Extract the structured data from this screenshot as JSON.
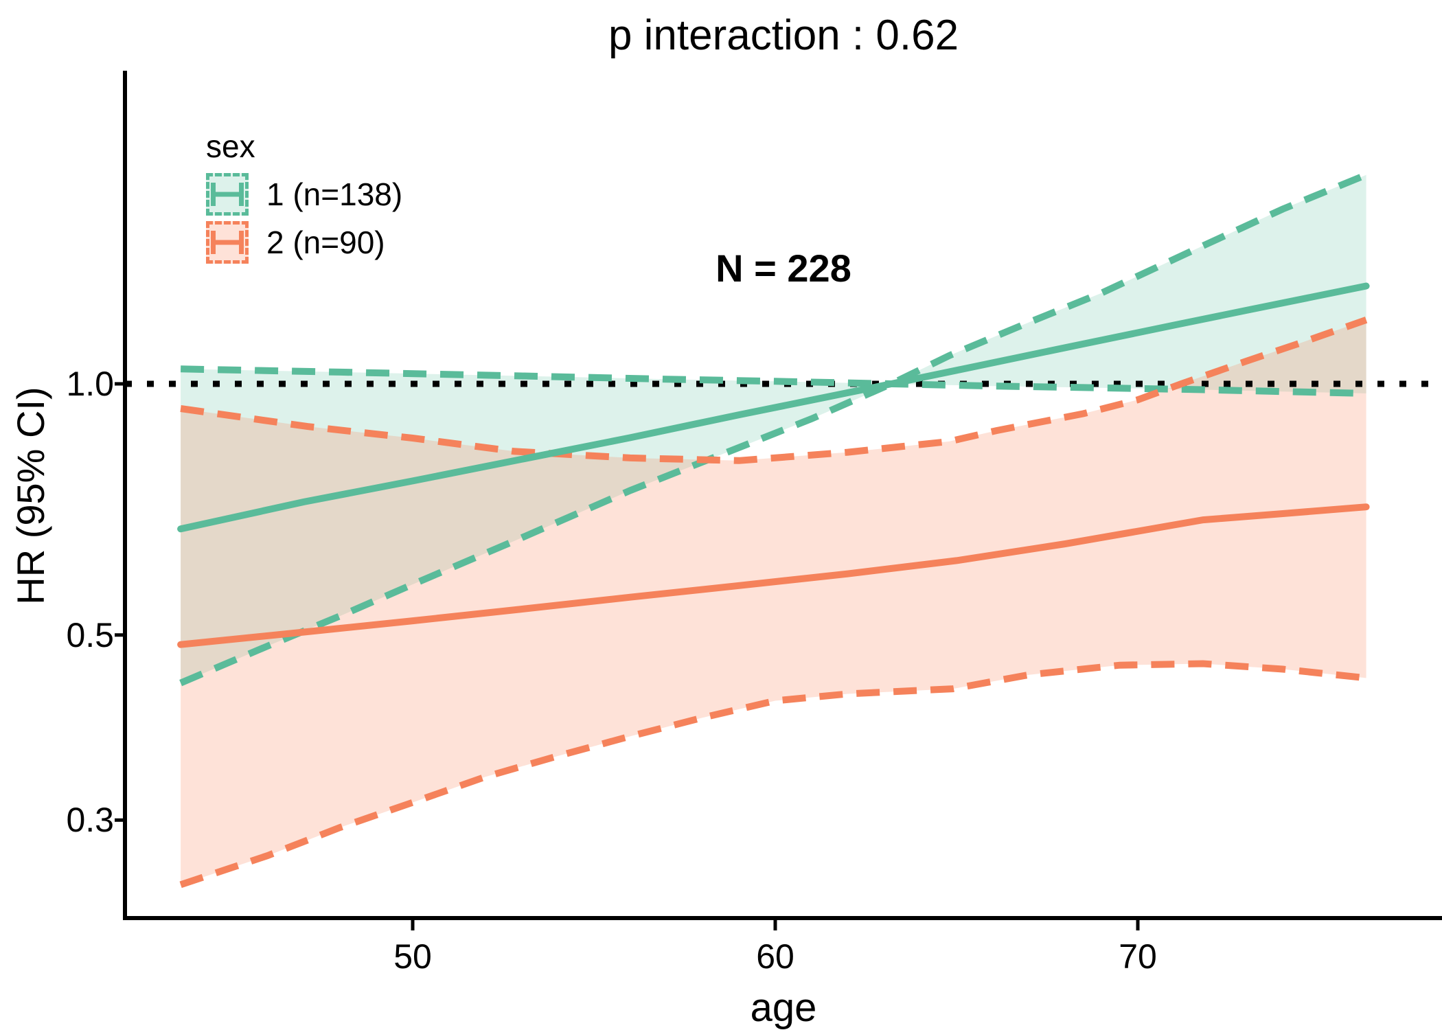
{
  "page": {
    "background": "#ffffff"
  },
  "chart_data": {
    "type": "line",
    "title": "p interaction : 0.62",
    "annotation": "N = 228",
    "xlabel": "age",
    "ylabel": "HR (95% CI)",
    "x_domain": [
      43.6,
      76.3
    ],
    "y_scale": "log",
    "reference_line_y": 1.0,
    "grid": "off",
    "legend_position": "top-left-inside",
    "xticks": [
      {
        "label": "50",
        "value": 50
      },
      {
        "label": "60",
        "value": 60
      },
      {
        "label": "70",
        "value": 70
      }
    ],
    "yticks": [
      {
        "label": "1.0",
        "value": 1.0
      },
      {
        "label": "0.5",
        "value": 0.5
      },
      {
        "label": "0.3",
        "value": 0.3
      }
    ],
    "colors": {
      "sex1_line": "#5ABB9A",
      "sex2_line": "#F5825B",
      "sex1_ribbon": "rgba(102,194,165,0.22)",
      "sex2_ribbon": "rgba(252,141,98,0.25)",
      "reference_line": "#000000",
      "axis": "#000000"
    },
    "legend": {
      "title": "sex",
      "entries": [
        {
          "label": "1 (n=138)",
          "group": "sex1"
        },
        {
          "label": "2 (n=90)",
          "group": "sex2"
        }
      ]
    },
    "series": [
      {
        "name": "sex1-fit",
        "group": "sex1",
        "style": "solid",
        "points": [
          [
            43.6,
            0.67
          ],
          [
            47,
            0.722
          ],
          [
            50,
            0.765
          ],
          [
            53,
            0.812
          ],
          [
            56,
            0.862
          ],
          [
            59,
            0.918
          ],
          [
            61,
            0.956
          ],
          [
            63.2,
            1.0
          ],
          [
            65,
            1.038
          ],
          [
            68,
            1.105
          ],
          [
            71,
            1.176
          ],
          [
            73,
            1.225
          ],
          [
            76.3,
            1.31
          ]
        ]
      },
      {
        "name": "sex1-ci-a",
        "group": "sex1",
        "style": "dashed",
        "points": [
          [
            43.6,
            0.438
          ],
          [
            46,
            0.485
          ],
          [
            48,
            0.527
          ],
          [
            50,
            0.575
          ],
          [
            52.8,
            0.648
          ],
          [
            56,
            0.745
          ],
          [
            59.1,
            0.842
          ],
          [
            61,
            0.908
          ],
          [
            63.2,
            1.0
          ],
          [
            64.8,
            1.081
          ],
          [
            67,
            1.185
          ],
          [
            69,
            1.285
          ],
          [
            71.8,
            1.464
          ],
          [
            74,
            1.62
          ],
          [
            76.3,
            1.78
          ]
        ]
      },
      {
        "name": "sex1-ci-b",
        "group": "sex1",
        "style": "dashed",
        "points": [
          [
            43.6,
            1.042
          ],
          [
            48,
            1.033
          ],
          [
            53,
            1.022
          ],
          [
            57,
            1.013
          ],
          [
            60,
            1.007
          ],
          [
            63.2,
            1.0
          ],
          [
            66,
            0.994
          ],
          [
            69,
            0.989
          ],
          [
            71.8,
            0.984
          ],
          [
            74,
            0.979
          ],
          [
            76.3,
            0.974
          ]
        ]
      },
      {
        "name": "sex2-fit",
        "group": "sex2",
        "style": "solid",
        "points": [
          [
            43.6,
            0.487
          ],
          [
            47,
            0.504
          ],
          [
            50,
            0.52
          ],
          [
            53,
            0.537
          ],
          [
            56,
            0.555
          ],
          [
            59,
            0.573
          ],
          [
            62,
            0.592
          ],
          [
            65,
            0.614
          ],
          [
            68,
            0.643
          ],
          [
            71.8,
            0.687
          ],
          [
            74,
            0.699
          ],
          [
            76.3,
            0.712
          ]
        ]
      },
      {
        "name": "sex2-ci-upper",
        "group": "sex2",
        "style": "dashed",
        "points": [
          [
            43.6,
            0.934
          ],
          [
            47.1,
            0.889
          ],
          [
            50,
            0.861
          ],
          [
            52.8,
            0.83
          ],
          [
            56,
            0.815
          ],
          [
            59,
            0.809
          ],
          [
            62,
            0.828
          ],
          [
            64.8,
            0.853
          ],
          [
            66.1,
            0.879
          ],
          [
            68.5,
            0.921
          ],
          [
            70,
            0.957
          ],
          [
            71.2,
            1.0
          ],
          [
            73,
            1.065
          ],
          [
            74.5,
            1.12
          ],
          [
            76.3,
            1.193
          ]
        ]
      },
      {
        "name": "sex2-ci-lower",
        "group": "sex2",
        "style": "dashed",
        "points": [
          [
            43.6,
            0.251
          ],
          [
            46,
            0.272
          ],
          [
            48,
            0.294
          ],
          [
            50,
            0.315
          ],
          [
            52,
            0.338
          ],
          [
            54,
            0.358
          ],
          [
            56,
            0.378
          ],
          [
            58,
            0.398
          ],
          [
            60,
            0.417
          ],
          [
            62,
            0.425
          ],
          [
            64.9,
            0.431
          ],
          [
            67,
            0.448
          ],
          [
            69.5,
            0.46
          ],
          [
            71.8,
            0.462
          ],
          [
            74,
            0.455
          ],
          [
            76.3,
            0.444
          ]
        ]
      }
    ],
    "ribbons": [
      {
        "name": "sex1-ci-band",
        "between": [
          "sex1-ci-a",
          "sex1-ci-b"
        ],
        "group": "sex1"
      },
      {
        "name": "sex2-ci-band",
        "between": [
          "sex2-ci-upper",
          "sex2-ci-lower"
        ],
        "group": "sex2"
      }
    ]
  }
}
